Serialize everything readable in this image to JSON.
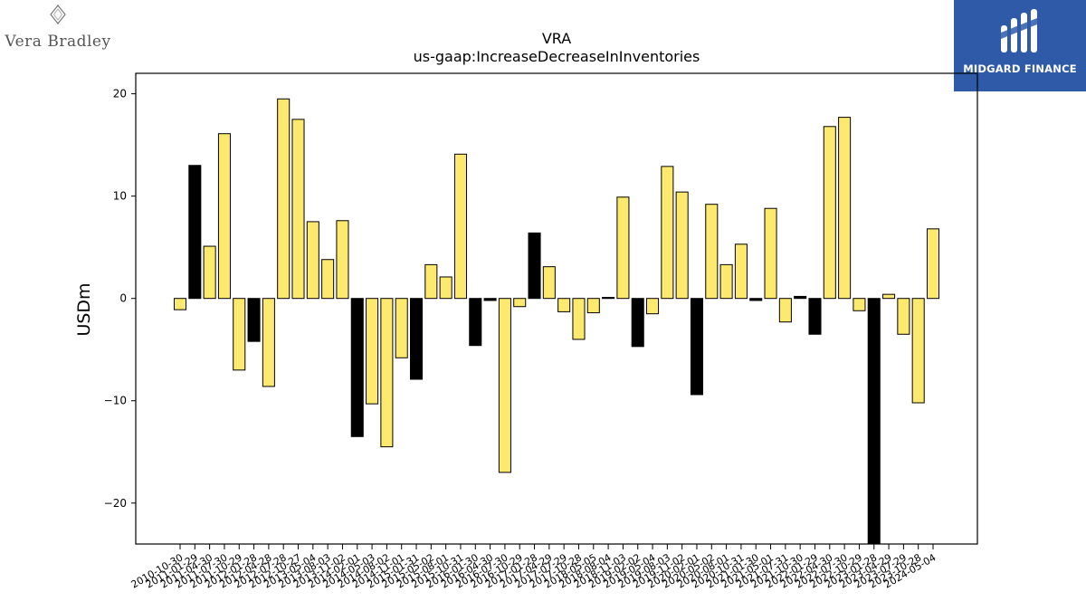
{
  "brand": {
    "left_logo": "Vera Bradley",
    "right_logo": "MIDGARD FINANCE"
  },
  "colors": {
    "positive_bar": "#fde96e",
    "negative_bar": "#000000",
    "brand_blue": "#2e5aa8"
  },
  "chart_data": {
    "type": "bar",
    "title": "VRA",
    "subtitle": "us-gaap:IncreaseDecreaseInInventories",
    "xlabel": "",
    "ylabel": "USDm",
    "ylim": [
      -24,
      22
    ],
    "yticks": [
      -20,
      -10,
      0,
      10,
      20
    ],
    "grid": false,
    "categories": [
      "2010-10-30",
      "2011-01-29",
      "2011-04-30",
      "2011-07-30",
      "2011-10-29",
      "2012-01-28",
      "2012-04-28",
      "2012-07-28",
      "2012-10-27",
      "2013-05-04",
      "2013-08-03",
      "2013-11-02",
      "2014-02-01",
      "2014-05-03",
      "2014-08-02",
      "2014-11-01",
      "2015-01-31",
      "2015-05-02",
      "2015-08-01",
      "2015-10-31",
      "2016-01-30",
      "2016-04-30",
      "2016-07-30",
      "2016-10-29",
      "2017-01-28",
      "2017-04-29",
      "2017-07-29",
      "2017-10-28",
      "2018-05-05",
      "2018-08-04",
      "2018-11-03",
      "2019-02-02",
      "2019-05-04",
      "2019-08-03",
      "2019-11-02",
      "2020-02-01",
      "2020-05-02",
      "2020-08-01",
      "2020-10-31",
      "2021-01-30",
      "2021-05-01",
      "2021-07-31",
      "2021-10-30",
      "2022-01-29",
      "2022-04-30",
      "2022-07-30",
      "2022-10-29",
      "2023-01-28",
      "2023-04-29",
      "2023-07-29",
      "2023-10-28",
      "2024-05-04"
    ],
    "values": [
      -1.1,
      13.0,
      5.1,
      16.1,
      -7.0,
      -4.2,
      -8.6,
      19.5,
      17.5,
      7.5,
      3.8,
      7.6,
      -13.5,
      -10.3,
      -14.5,
      -5.8,
      -7.9,
      3.3,
      2.1,
      14.1,
      -4.6,
      -0.2,
      -17.0,
      -0.8,
      6.4,
      3.1,
      -1.3,
      -4.0,
      -1.4,
      0.1,
      9.9,
      -4.7,
      -1.5,
      12.9,
      10.4,
      -9.4,
      9.2,
      3.3,
      5.3,
      -0.2,
      8.8,
      -2.3,
      0.2,
      -3.5,
      16.8,
      17.7,
      -1.2,
      -26.0,
      0.4,
      -3.5,
      -10.2,
      6.8
    ],
    "highlight": [
      false,
      true,
      false,
      false,
      false,
      true,
      false,
      false,
      false,
      false,
      false,
      false,
      true,
      false,
      false,
      false,
      true,
      false,
      false,
      false,
      true,
      true,
      false,
      false,
      true,
      false,
      false,
      false,
      false,
      true,
      false,
      true,
      false,
      false,
      false,
      true,
      false,
      false,
      false,
      true,
      false,
      false,
      true,
      true,
      false,
      false,
      false,
      true,
      false,
      false,
      false,
      false
    ],
    "tick_labels_shown": [
      "2010-10-30",
      "2011-01-29",
      "2011-04-30",
      "2011-07-30",
      "2011-10-29",
      "2012-01-28",
      "2012-04-28",
      "2012-07-28",
      "2012-10-27",
      "2013-05-04",
      "2013-08-03",
      "2013-11-02",
      "2014-02-01",
      "2014-05-03",
      "2014-08-02",
      "2014-11-01",
      "2015-01-31",
      "2015-05-02",
      "2015-08-01",
      "2015-10-31",
      "2016-01-30",
      "2016-04-30",
      "2016-07-30",
      "2016-10-29",
      "2017-01-28",
      "2017-04-29",
      "2017-07-29",
      "2017-10-28",
      "2018-05-05",
      "2018-08-04",
      "2018-11-03",
      "2019-02-02",
      "2019-05-04",
      "2019-08-03",
      "2019-11-02",
      "2020-02-01",
      "2020-05-02",
      "2020-08-01",
      "2020-10-31",
      "2021-01-30",
      "2021-05-01",
      "2021-07-31",
      "2021-10-30",
      "2022-01-29",
      "2022-04-30",
      "2022-07-30",
      "2022-10-29",
      "2023-01-28",
      "2023-04-29",
      "2023-07-29",
      "2023-10-28",
      "2024-05-04"
    ]
  }
}
